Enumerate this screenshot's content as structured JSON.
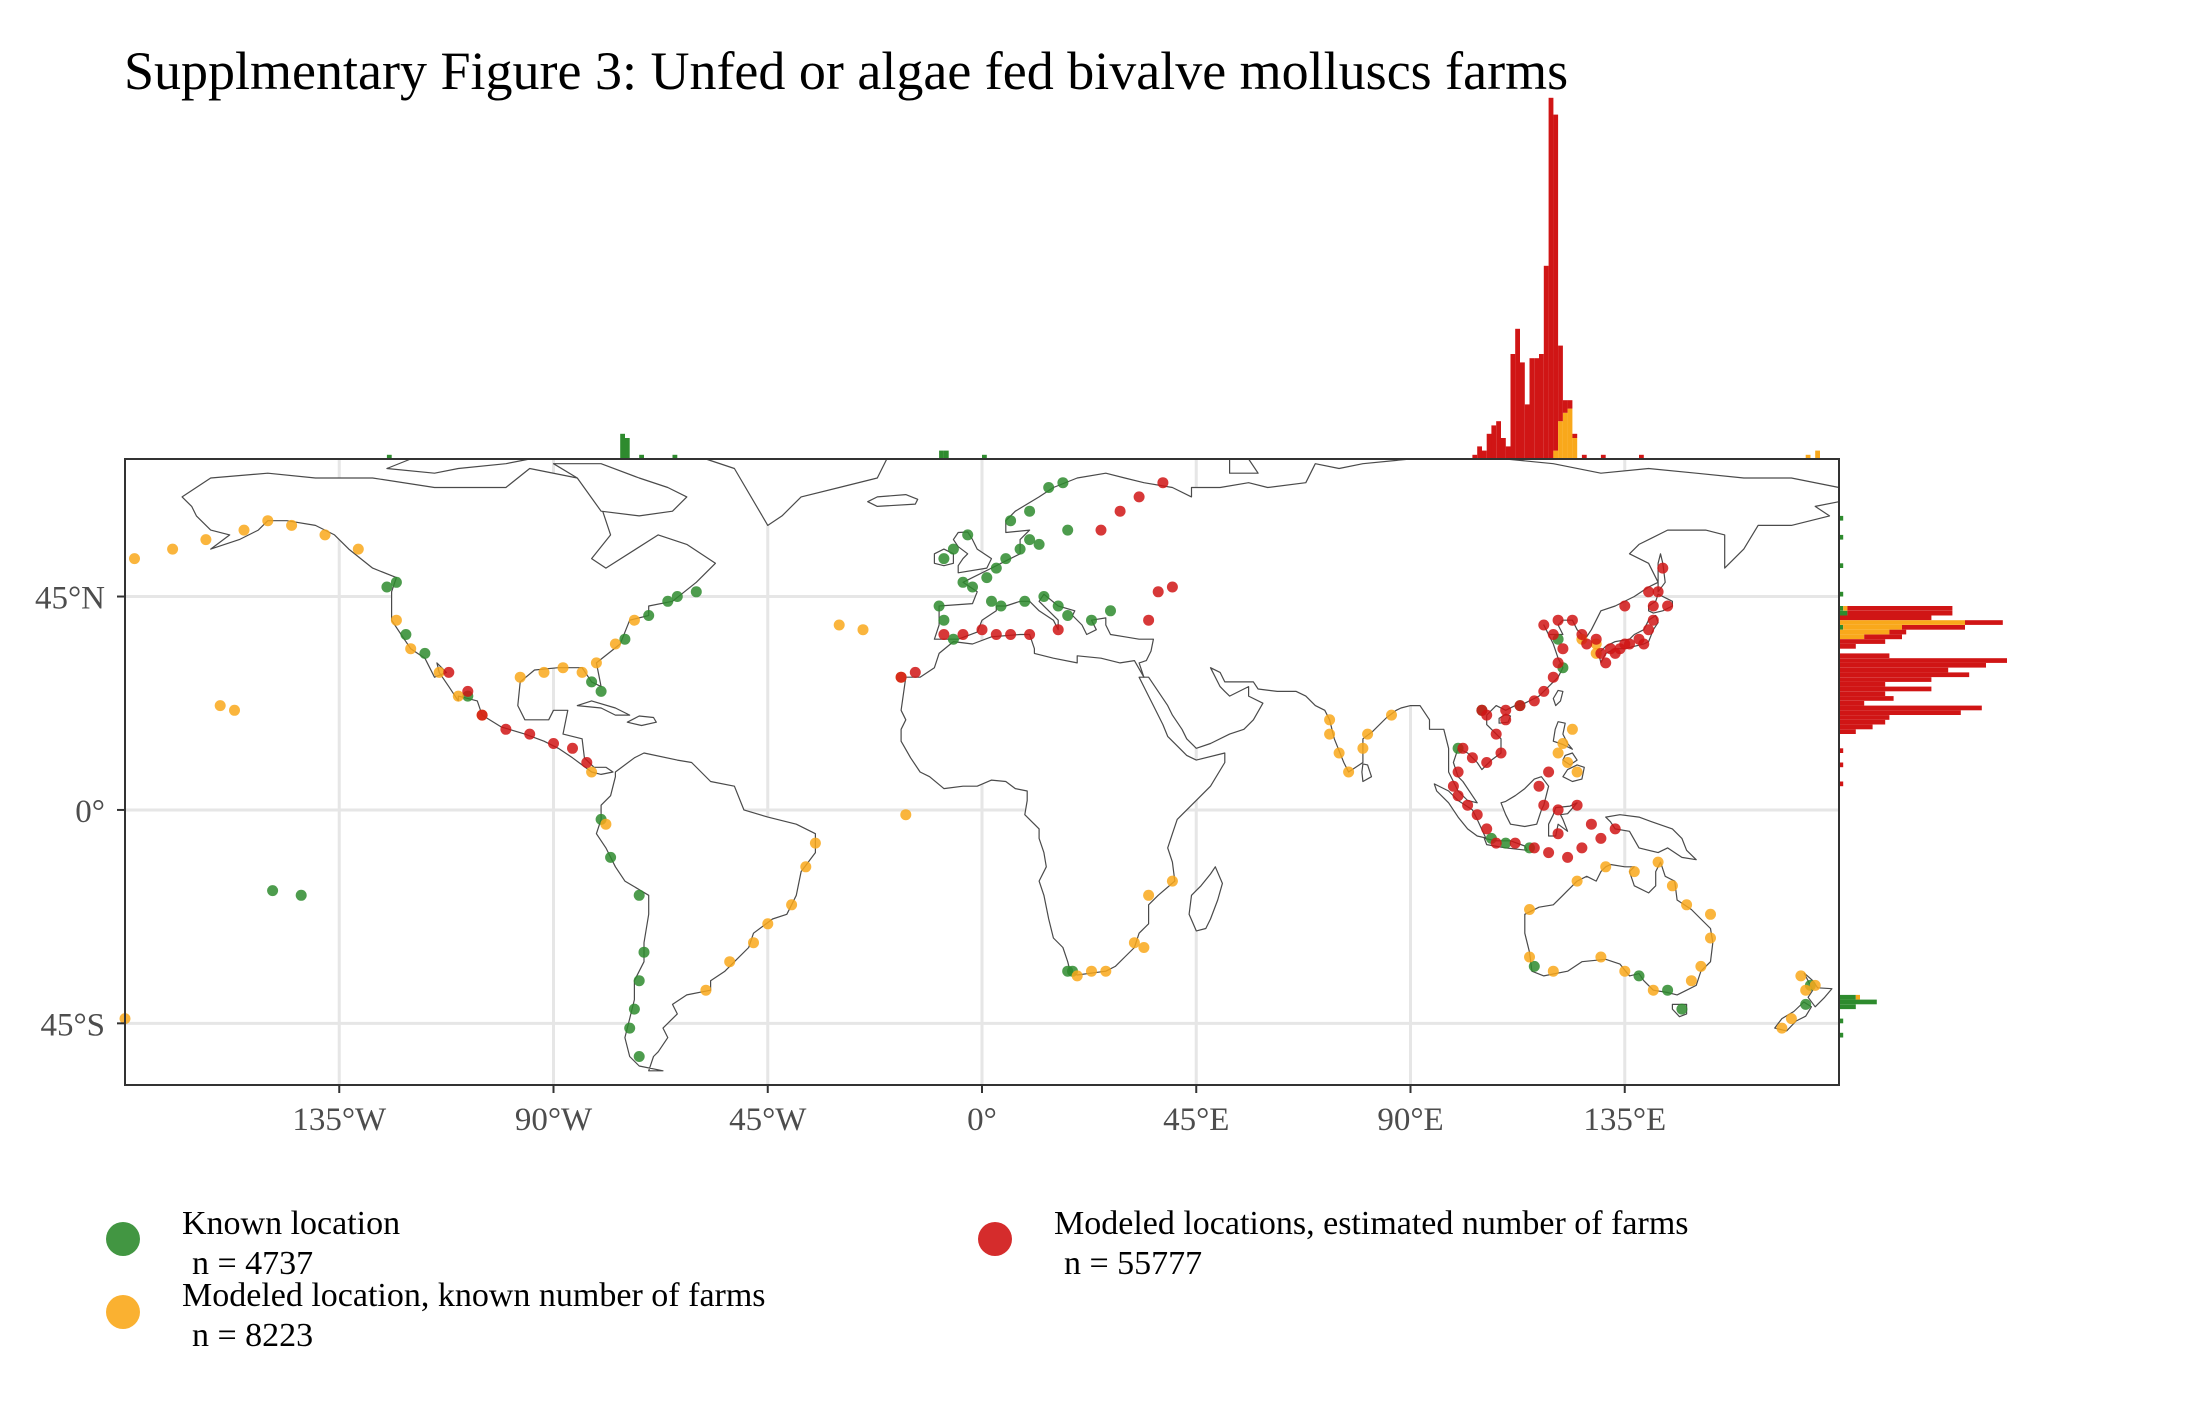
{
  "title": "Supplmentary Figure 3: Unfed or algae fed bivalve molluscs farms",
  "colors": {
    "known": "#2e8b2e",
    "modeled_known": "#f9a81b",
    "modeled_estimated": "#d01515",
    "land_stroke": "#4a4a4a",
    "grid": "#e6e6e6",
    "axis_text": "#4d4d4d"
  },
  "map": {
    "x_ticks": [
      "135°W",
      "90°W",
      "45°W",
      "0°",
      "45°E",
      "90°E",
      "135°E"
    ],
    "y_ticks": [
      "45°N",
      "0°",
      "45°S"
    ],
    "lon_range": [
      -180,
      180
    ],
    "lat_range": [
      -58,
      74
    ]
  },
  "legend": [
    {
      "key": "known",
      "label": "Known location",
      "count": "n = 4737"
    },
    {
      "key": "modeled_known",
      "label": "Modeled location, known number of farms",
      "count": "n = 8223"
    },
    {
      "key": "modeled_estimated",
      "label": "Modeled locations, estimated number of farms",
      "count": "n = 55777"
    }
  ],
  "chart_data": {
    "type": "scatter",
    "title": "Supplmentary Figure 3: Unfed or algae fed bivalve molluscs farms",
    "xlabel": "",
    "ylabel": "",
    "xlim": [
      -180,
      180
    ],
    "ylim": [
      -58,
      74
    ],
    "series": [
      {
        "name": "Known location",
        "color": "#2e8b2e",
        "n": 4737,
        "points": [
          [
            -125,
            47
          ],
          [
            -123,
            48
          ],
          [
            -121,
            37
          ],
          [
            -117,
            33
          ],
          [
            -108,
            24
          ],
          [
            -70,
            41
          ],
          [
            -66,
            44
          ],
          [
            -64,
            45
          ],
          [
            -60,
            46
          ],
          [
            -75,
            36
          ],
          [
            -80,
            25
          ],
          [
            -82,
            27
          ],
          [
            -80,
            -2
          ],
          [
            -78,
            -10
          ],
          [
            -72,
            -18
          ],
          [
            -71,
            -30
          ],
          [
            -72,
            -36
          ],
          [
            -73,
            -42
          ],
          [
            -74,
            -46
          ],
          [
            -72,
            -52
          ],
          [
            -9,
            43
          ],
          [
            -8,
            40
          ],
          [
            -6,
            36
          ],
          [
            -4,
            48
          ],
          [
            -2,
            47
          ],
          [
            1,
            49
          ],
          [
            3,
            51
          ],
          [
            5,
            53
          ],
          [
            8,
            55
          ],
          [
            10,
            57
          ],
          [
            12,
            56
          ],
          [
            18,
            59
          ],
          [
            6,
            61
          ],
          [
            10,
            63
          ],
          [
            14,
            68
          ],
          [
            17,
            69
          ],
          [
            -6,
            55
          ],
          [
            -8,
            53
          ],
          [
            -3,
            58
          ],
          [
            2,
            44
          ],
          [
            4,
            43
          ],
          [
            9,
            44
          ],
          [
            13,
            45
          ],
          [
            16,
            43
          ],
          [
            18,
            41
          ],
          [
            23,
            40
          ],
          [
            27,
            42
          ],
          [
            18,
            -34
          ],
          [
            19,
            -34
          ],
          [
            105,
            21
          ],
          [
            107,
            -6
          ],
          [
            110,
            -7
          ],
          [
            115,
            -8
          ],
          [
            116,
            -33
          ],
          [
            138,
            -35
          ],
          [
            144,
            -38
          ],
          [
            147,
            -42
          ],
          [
            173,
            -41
          ],
          [
            174,
            -37
          ],
          [
            -149,
            -17
          ],
          [
            -143,
            -18
          ],
          [
            121,
            36
          ],
          [
            122,
            30
          ],
          [
            113,
            22
          ],
          [
            100,
            13
          ]
        ]
      },
      {
        "name": "Modeled location, known number of farms",
        "color": "#f9a81b",
        "n": 8223,
        "points": [
          [
            -178,
            53
          ],
          [
            -170,
            55
          ],
          [
            -163,
            57
          ],
          [
            -155,
            59
          ],
          [
            -150,
            61
          ],
          [
            -145,
            60
          ],
          [
            -138,
            58
          ],
          [
            -131,
            55
          ],
          [
            -123,
            40
          ],
          [
            -120,
            34
          ],
          [
            -114,
            29
          ],
          [
            -110,
            24
          ],
          [
            -97,
            28
          ],
          [
            -92,
            29
          ],
          [
            -88,
            30
          ],
          [
            -84,
            29
          ],
          [
            -81,
            31
          ],
          [
            -77,
            35
          ],
          [
            -73,
            40
          ],
          [
            -82,
            8
          ],
          [
            -79,
            -3
          ],
          [
            -35,
            -7
          ],
          [
            -37,
            -12
          ],
          [
            -40,
            -20
          ],
          [
            -45,
            -24
          ],
          [
            -48,
            -28
          ],
          [
            -53,
            -32
          ],
          [
            -58,
            -38
          ],
          [
            -30,
            39
          ],
          [
            -25,
            38
          ],
          [
            -17,
            28
          ],
          [
            -16,
            -1
          ],
          [
            -180,
            -44
          ],
          [
            -157,
            21
          ],
          [
            -160,
            22
          ],
          [
            73,
            19
          ],
          [
            73,
            16
          ],
          [
            75,
            12
          ],
          [
            77,
            8
          ],
          [
            80,
            13
          ],
          [
            81,
            16
          ],
          [
            86,
            20
          ],
          [
            124,
            17
          ],
          [
            122,
            14
          ],
          [
            123,
            10
          ],
          [
            125,
            8
          ],
          [
            121,
            12
          ],
          [
            115,
            -21
          ],
          [
            115,
            -31
          ],
          [
            120,
            -34
          ],
          [
            130,
            -31
          ],
          [
            135,
            -34
          ],
          [
            141,
            -38
          ],
          [
            149,
            -36
          ],
          [
            151,
            -33
          ],
          [
            153,
            -27
          ],
          [
            153,
            -22
          ],
          [
            148,
            -20
          ],
          [
            145,
            -16
          ],
          [
            142,
            -11
          ],
          [
            137,
            -13
          ],
          [
            131,
            -12
          ],
          [
            125,
            -15
          ],
          [
            23,
            -34
          ],
          [
            26,
            -34
          ],
          [
            20,
            -35
          ],
          [
            34,
            -29
          ],
          [
            32,
            -28
          ],
          [
            35,
            -18
          ],
          [
            40,
            -15
          ],
          [
            168,
            -46
          ],
          [
            170,
            -44
          ],
          [
            173,
            -38
          ],
          [
            175,
            -37
          ],
          [
            172,
            -35
          ],
          [
            129,
            33
          ],
          [
            129,
            35
          ],
          [
            126,
            36
          ],
          [
            -105,
            20
          ]
        ]
      },
      {
        "name": "Modeled locations, estimated number of farms",
        "color": "#d01515",
        "n": 55777,
        "points": [
          [
            -112,
            29
          ],
          [
            -108,
            25
          ],
          [
            -105,
            20
          ],
          [
            -100,
            17
          ],
          [
            -95,
            16
          ],
          [
            -90,
            14
          ],
          [
            -86,
            13
          ],
          [
            -83,
            10
          ],
          [
            -8,
            37
          ],
          [
            -4,
            37
          ],
          [
            0,
            38
          ],
          [
            3,
            37
          ],
          [
            6,
            37
          ],
          [
            10,
            37
          ],
          [
            16,
            38
          ],
          [
            -17,
            28
          ],
          [
            -14,
            29
          ],
          [
            29,
            63
          ],
          [
            33,
            66
          ],
          [
            25,
            59
          ],
          [
            38,
            69
          ],
          [
            35,
            40
          ],
          [
            37,
            46
          ],
          [
            40,
            47
          ],
          [
            105,
            21
          ],
          [
            106,
            20
          ],
          [
            108,
            16
          ],
          [
            109,
            12
          ],
          [
            106,
            10
          ],
          [
            103,
            11
          ],
          [
            101,
            13
          ],
          [
            100,
            8
          ],
          [
            99,
            5
          ],
          [
            100,
            3
          ],
          [
            102,
            1
          ],
          [
            104,
            -1
          ],
          [
            106,
            -4
          ],
          [
            108,
            -7
          ],
          [
            112,
            -7
          ],
          [
            116,
            -8
          ],
          [
            119,
            -9
          ],
          [
            123,
            -10
          ],
          [
            126,
            -8
          ],
          [
            130,
            -6
          ],
          [
            133,
            -4
          ],
          [
            128,
            -3
          ],
          [
            125,
            1
          ],
          [
            121,
            0
          ],
          [
            118,
            1
          ],
          [
            117,
            5
          ],
          [
            119,
            8
          ],
          [
            121,
            -5
          ],
          [
            110,
            21
          ],
          [
            113,
            22
          ],
          [
            116,
            23
          ],
          [
            118,
            25
          ],
          [
            120,
            28
          ],
          [
            121,
            31
          ],
          [
            122,
            34
          ],
          [
            120,
            37
          ],
          [
            118,
            39
          ],
          [
            121,
            40
          ],
          [
            124,
            40
          ],
          [
            126,
            37
          ],
          [
            127,
            35
          ],
          [
            129,
            36
          ],
          [
            130,
            33
          ],
          [
            132,
            34
          ],
          [
            134,
            34
          ],
          [
            136,
            35
          ],
          [
            138,
            36
          ],
          [
            140,
            38
          ],
          [
            141,
            40
          ],
          [
            141,
            43
          ],
          [
            144,
            43
          ],
          [
            140,
            46
          ],
          [
            135,
            43
          ],
          [
            142,
            46
          ],
          [
            143,
            51
          ],
          [
            110,
            19
          ],
          [
            135,
            35
          ],
          [
            133,
            33
          ],
          [
            131,
            31
          ],
          [
            139,
            35
          ]
        ]
      }
    ]
  },
  "marginal_x": {
    "bin_width_deg": 1,
    "bins": [
      {
        "lon": -76,
        "known": 6
      },
      {
        "lon": -75,
        "known": 5
      },
      {
        "lon": -72,
        "known": 1
      },
      {
        "lon": -65,
        "known": 1
      },
      {
        "lon": -125,
        "known": 1
      },
      {
        "lon": -9,
        "known": 2
      },
      {
        "lon": -8,
        "known": 2
      },
      {
        "lon": 0,
        "known": 1
      },
      {
        "lon": 103,
        "estimated": 1
      },
      {
        "lon": 104,
        "estimated": 3
      },
      {
        "lon": 105,
        "estimated": 2
      },
      {
        "lon": 106,
        "estimated": 6
      },
      {
        "lon": 107,
        "estimated": 8
      },
      {
        "lon": 108,
        "estimated": 9
      },
      {
        "lon": 109,
        "estimated": 5
      },
      {
        "lon": 110,
        "estimated": 3
      },
      {
        "lon": 111,
        "estimated": 25
      },
      {
        "lon": 112,
        "estimated": 31
      },
      {
        "lon": 113,
        "estimated": 23
      },
      {
        "lon": 114,
        "estimated": 13
      },
      {
        "lon": 115,
        "estimated": 24
      },
      {
        "lon": 116,
        "estimated": 24
      },
      {
        "lon": 117,
        "estimated": 25
      },
      {
        "lon": 118,
        "estimated": 46
      },
      {
        "lon": 119,
        "estimated": 86
      },
      {
        "lon": 120,
        "estimated": 80,
        "modeled": 2
      },
      {
        "lon": 121,
        "estimated": 18,
        "modeled": 9
      },
      {
        "lon": 122,
        "estimated": 3,
        "modeled": 11
      },
      {
        "lon": 123,
        "estimated": 2,
        "modeled": 12
      },
      {
        "lon": 124,
        "estimated": 1,
        "modeled": 5
      },
      {
        "lon": 126,
        "estimated": 1
      },
      {
        "lon": 130,
        "estimated": 1
      },
      {
        "lon": 138,
        "estimated": 1
      },
      {
        "lon": 173,
        "modeled": 1
      },
      {
        "lon": 175,
        "modeled": 2
      }
    ]
  },
  "marginal_y": {
    "bin_width_deg": 1,
    "bins": [
      {
        "lat": 61,
        "known": 1
      },
      {
        "lat": 57,
        "known": 1
      },
      {
        "lat": 51,
        "known": 1
      },
      {
        "lat": 45,
        "known": 1
      },
      {
        "lat": 42,
        "estimated": 25,
        "modeled": 1,
        "known": 1
      },
      {
        "lat": 41,
        "estimated": 25,
        "known": 2
      },
      {
        "lat": 40,
        "estimated": 22
      },
      {
        "lat": 39,
        "estimated": 9,
        "modeled": 30
      },
      {
        "lat": 38,
        "estimated": 15,
        "modeled": 14,
        "known": 1
      },
      {
        "lat": 37,
        "estimated": 4,
        "modeled": 12
      },
      {
        "lat": 36,
        "estimated": 9,
        "modeled": 6
      },
      {
        "lat": 35,
        "estimated": 11
      },
      {
        "lat": 34,
        "estimated": 4
      },
      {
        "lat": 32,
        "estimated": 12
      },
      {
        "lat": 31,
        "estimated": 40
      },
      {
        "lat": 30,
        "estimated": 35
      },
      {
        "lat": 29,
        "estimated": 26
      },
      {
        "lat": 28,
        "estimated": 31
      },
      {
        "lat": 27,
        "estimated": 22
      },
      {
        "lat": 26,
        "estimated": 11
      },
      {
        "lat": 25,
        "estimated": 22
      },
      {
        "lat": 24,
        "estimated": 11
      },
      {
        "lat": 23,
        "estimated": 13
      },
      {
        "lat": 22,
        "estimated": 6
      },
      {
        "lat": 21,
        "estimated": 34
      },
      {
        "lat": 20,
        "estimated": 29
      },
      {
        "lat": 19,
        "estimated": 12
      },
      {
        "lat": 18,
        "estimated": 11
      },
      {
        "lat": 17,
        "estimated": 8
      },
      {
        "lat": 16,
        "estimated": 4
      },
      {
        "lat": 12,
        "estimated": 1
      },
      {
        "lat": 9,
        "estimated": 1
      },
      {
        "lat": 5,
        "estimated": 1
      },
      {
        "lat": -40,
        "known": 4,
        "modeled": 1
      },
      {
        "lat": -41,
        "known": 9
      },
      {
        "lat": -42,
        "known": 4
      },
      {
        "lat": -45,
        "known": 1
      },
      {
        "lat": -48,
        "known": 1
      }
    ]
  }
}
